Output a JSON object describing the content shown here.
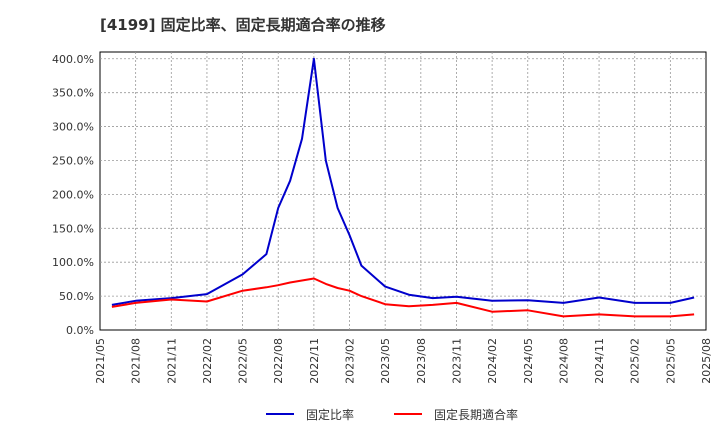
{
  "chart_data": {
    "type": "line",
    "title": "[4199]  固定比率、固定長期適合率の推移",
    "xlabel": "",
    "ylabel": "",
    "x_ticks": [
      "2021/05",
      "2021/08",
      "2021/11",
      "2022/02",
      "2022/05",
      "2022/08",
      "2022/11",
      "2023/02",
      "2023/05",
      "2023/08",
      "2023/11",
      "2024/02",
      "2024/05",
      "2024/08",
      "2024/11",
      "2025/02",
      "2025/05",
      "2025/08"
    ],
    "y_ticks": [
      "0.0%",
      "50.0%",
      "100.0%",
      "150.0%",
      "200.0%",
      "250.0%",
      "300.0%",
      "350.0%",
      "400.0%"
    ],
    "ylim": [
      0,
      410
    ],
    "x_range_months": [
      0,
      51
    ],
    "grid": true,
    "legend_position": "bottom-center",
    "series": [
      {
        "name": "固定比率",
        "color": "#0000cc",
        "x_months": [
          1,
          3,
          6,
          9,
          12,
          14,
          15,
          16,
          17,
          18,
          19,
          20,
          21,
          22,
          24,
          26,
          28,
          30,
          33,
          36,
          39,
          42,
          45,
          48,
          50
        ],
        "values": [
          37,
          43,
          47,
          53,
          82,
          112,
          180,
          220,
          282,
          400,
          250,
          180,
          140,
          95,
          64,
          52,
          47,
          49,
          43,
          44,
          40,
          48,
          40,
          40,
          48
        ]
      },
      {
        "name": "固定長期適合率",
        "color": "#ff0000",
        "x_months": [
          1,
          3,
          6,
          9,
          12,
          14,
          15,
          16,
          17,
          18,
          19,
          20,
          21,
          22,
          24,
          26,
          28,
          30,
          33,
          36,
          39,
          42,
          45,
          48,
          50
        ],
        "values": [
          34,
          40,
          45,
          42,
          58,
          63,
          66,
          70,
          73,
          76,
          68,
          62,
          58,
          50,
          38,
          35,
          37,
          40,
          27,
          29,
          20,
          23,
          20,
          20,
          23
        ]
      }
    ]
  }
}
